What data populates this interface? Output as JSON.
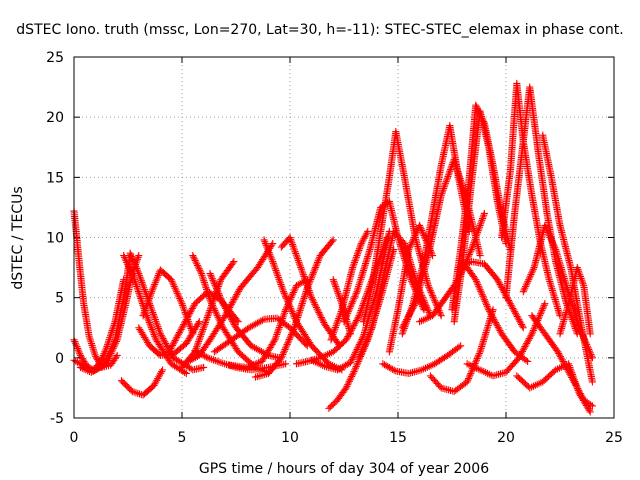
{
  "chart_data": {
    "type": "scatter",
    "title": "dSTEC Iono. truth (mssc, Lon=270, Lat=30, h=-11): STEC-STEC_elemax in phase cont.",
    "xlabel": "GPS time / hours of day 304 of year 2006",
    "ylabel": "dSTEC  / TECUs",
    "xlim": [
      0,
      25
    ],
    "ylim": [
      -5,
      25
    ],
    "xticks": [
      0,
      5,
      10,
      15,
      20,
      25
    ],
    "yticks": [
      -5,
      0,
      5,
      10,
      15,
      20,
      25
    ],
    "grid": true,
    "marker": "plus",
    "color": "#ff0000",
    "series": [
      {
        "x": [
          0.0,
          0.1,
          0.25,
          0.45,
          0.7,
          1.0,
          1.3,
          1.7,
          2.0
        ],
        "y": [
          12.2,
          10.5,
          7.8,
          4.5,
          1.8,
          0.1,
          -0.8,
          -0.6,
          0.2
        ]
      },
      {
        "x": [
          0.0,
          0.3,
          0.6,
          0.9,
          1.2,
          1.5,
          1.9,
          2.3
        ],
        "y": [
          1.5,
          0.2,
          -0.7,
          -1.0,
          -0.4,
          0.8,
          3.0,
          6.5
        ]
      },
      {
        "x": [
          0.0,
          0.4,
          0.9,
          1.5,
          2.0,
          2.4,
          2.7,
          3.0
        ],
        "y": [
          -0.2,
          -0.6,
          -1.1,
          -0.5,
          1.5,
          4.5,
          7.0,
          8.5
        ]
      },
      {
        "x": [
          0.3,
          0.8,
          1.4,
          1.9,
          2.3,
          2.6
        ],
        "y": [
          -0.8,
          -1.2,
          -0.6,
          1.5,
          5.0,
          8.5
        ]
      },
      {
        "x": [
          2.3,
          2.8,
          3.3,
          3.8,
          4.5,
          5.2
        ],
        "y": [
          8.5,
          6.5,
          3.8,
          1.5,
          -0.5,
          -1.3
        ]
      },
      {
        "x": [
          2.6,
          3.0,
          3.5,
          4.0,
          4.6,
          5.5,
          6.0
        ],
        "y": [
          8.7,
          7.0,
          4.5,
          2.0,
          0.0,
          -1.0,
          -0.8
        ]
      },
      {
        "x": [
          2.2,
          2.7,
          3.2,
          3.7,
          4.1
        ],
        "y": [
          -1.9,
          -2.8,
          -3.1,
          -2.3,
          -1.0
        ]
      },
      {
        "x": [
          3.0,
          3.5,
          4.0,
          4.6,
          5.2,
          5.8
        ],
        "y": [
          2.5,
          1.0,
          0.2,
          0.3,
          1.2,
          3.0
        ]
      },
      {
        "x": [
          3.2,
          3.6,
          4.0,
          4.5,
          5.0,
          5.5
        ],
        "y": [
          3.5,
          5.5,
          7.3,
          6.5,
          4.5,
          2.0
        ]
      },
      {
        "x": [
          4.4,
          5.0,
          5.6,
          6.2,
          6.8,
          7.6
        ],
        "y": [
          0.5,
          2.5,
          4.5,
          5.5,
          4.8,
          3.0
        ]
      },
      {
        "x": [
          5.3,
          5.8,
          6.3,
          7.0,
          7.7,
          8.5,
          9.2
        ],
        "y": [
          -0.3,
          0.2,
          1.5,
          3.5,
          5.8,
          7.5,
          9.5
        ]
      },
      {
        "x": [
          5.0,
          5.6,
          6.2,
          6.8,
          7.4
        ],
        "y": [
          -0.8,
          0.5,
          3.5,
          6.5,
          8.0
        ]
      },
      {
        "x": [
          5.5,
          5.9,
          6.3,
          6.9,
          7.6,
          8.4,
          9.0
        ],
        "y": [
          8.5,
          7.0,
          4.8,
          2.5,
          0.5,
          -0.8,
          -1.2
        ]
      },
      {
        "x": [
          6.3,
          6.9,
          7.5,
          8.2,
          9.0,
          9.5
        ],
        "y": [
          7.0,
          4.5,
          2.5,
          1.0,
          0.2,
          0.0
        ]
      },
      {
        "x": [
          5.6,
          6.2,
          6.8,
          7.5,
          8.2,
          9.0,
          9.8
        ],
        "y": [
          0.6,
          0.0,
          -0.4,
          -0.8,
          -1.0,
          -0.8,
          -0.5
        ]
      },
      {
        "x": [
          6.5,
          7.3,
          8.1,
          8.8,
          9.4,
          10.0,
          10.8
        ],
        "y": [
          0.5,
          1.5,
          2.5,
          3.2,
          3.3,
          2.5,
          1.0
        ]
      },
      {
        "x": [
          7.2,
          8.0,
          8.7,
          9.3,
          9.8,
          10.3,
          10.8
        ],
        "y": [
          -0.6,
          -0.8,
          -0.3,
          1.5,
          4.0,
          6.0,
          6.5
        ]
      },
      {
        "x": [
          8.4,
          9.0,
          9.6,
          10.2,
          10.8,
          11.4,
          12.0
        ],
        "y": [
          -1.6,
          -1.3,
          0.0,
          2.5,
          5.8,
          8.5,
          9.8
        ]
      },
      {
        "x": [
          8.8,
          9.2,
          9.7,
          10.3,
          11.0,
          11.8,
          12.4
        ],
        "y": [
          9.8,
          8.0,
          5.5,
          3.0,
          1.0,
          -0.5,
          -1.0
        ]
      },
      {
        "x": [
          9.6,
          10.0,
          10.5,
          11.0,
          11.6,
          12.3
        ],
        "y": [
          9.2,
          10.0,
          7.5,
          5.0,
          2.8,
          1.0
        ]
      },
      {
        "x": [
          10.3,
          10.8,
          11.4,
          12.0,
          12.6,
          13.2,
          13.8,
          14.5
        ],
        "y": [
          -0.5,
          -0.3,
          0.0,
          0.5,
          1.5,
          3.5,
          6.5,
          10.0
        ]
      },
      {
        "x": [
          11.0,
          11.6,
          12.2,
          12.8,
          13.4,
          14.0,
          14.6
        ],
        "y": [
          -0.2,
          -0.7,
          -1.0,
          -0.4,
          1.8,
          5.5,
          10.5
        ]
      },
      {
        "x": [
          11.8,
          12.2,
          12.6,
          13.0,
          13.6,
          14.2,
          14.8
        ],
        "y": [
          -4.2,
          -3.5,
          -2.5,
          -1.0,
          1.5,
          5.0,
          9.0
        ]
      },
      {
        "x": [
          11.9,
          12.4,
          12.9,
          13.3,
          13.6
        ],
        "y": [
          1.5,
          4.0,
          7.5,
          9.5,
          10.5
        ]
      },
      {
        "x": [
          12.0,
          12.4,
          12.8
        ],
        "y": [
          6.5,
          4.5,
          2.0
        ]
      },
      {
        "x": [
          13.4,
          13.8,
          14.2,
          14.6,
          14.9,
          15.3,
          15.8,
          16.4,
          17.0
        ],
        "y": [
          3.0,
          6.0,
          10.5,
          15.0,
          18.8,
          15.0,
          10.0,
          6.0,
          3.5
        ]
      },
      {
        "x": [
          12.5,
          13.1,
          13.7,
          14.2,
          14.6,
          15.0,
          15.6,
          16.2
        ],
        "y": [
          3.0,
          5.5,
          9.0,
          12.5,
          13.0,
          10.0,
          6.5,
          4.0
        ]
      },
      {
        "x": [
          13.2,
          13.8,
          14.3,
          14.8,
          15.3,
          15.9,
          16.5
        ],
        "y": [
          0.0,
          2.5,
          6.5,
          10.5,
          9.5,
          6.0,
          3.5
        ]
      },
      {
        "x": [
          14.3,
          14.9,
          15.5,
          16.1,
          16.7,
          17.3,
          17.9
        ],
        "y": [
          -0.5,
          -1.1,
          -1.3,
          -1.0,
          -0.5,
          0.2,
          1.0
        ]
      },
      {
        "x": [
          14.6,
          15.0,
          15.5,
          16.0,
          16.6
        ],
        "y": [
          0.5,
          4.0,
          9.0,
          11.0,
          8.5
        ]
      },
      {
        "x": [
          15.2,
          15.7,
          16.2,
          16.6,
          17.0,
          17.4,
          17.8,
          18.3
        ],
        "y": [
          2.0,
          4.5,
          8.0,
          12.0,
          16.0,
          19.3,
          15.0,
          10.5
        ]
      },
      {
        "x": [
          15.2,
          15.8,
          16.4,
          17.0,
          17.6,
          18.2,
          18.8
        ],
        "y": [
          2.5,
          4.5,
          8.5,
          13.5,
          16.5,
          13.0,
          8.5
        ]
      },
      {
        "x": [
          16.0,
          16.6,
          17.2,
          17.8,
          18.4,
          19.0
        ],
        "y": [
          3.0,
          3.5,
          5.0,
          6.5,
          9.0,
          12.0
        ]
      },
      {
        "x": [
          16.5,
          17.0,
          17.6,
          18.2,
          18.8,
          19.4
        ],
        "y": [
          -1.5,
          -2.5,
          -2.8,
          -2.0,
          0.5,
          4.0
        ]
      },
      {
        "x": [
          17.5,
          17.9,
          18.3,
          18.6,
          19.0,
          19.4,
          19.8,
          20.2
        ],
        "y": [
          4.0,
          9.0,
          15.0,
          21.0,
          19.5,
          16.0,
          12.0,
          9.0
        ]
      },
      {
        "x": [
          17.6,
          18.0,
          18.4,
          18.8,
          19.2,
          19.6,
          20.0
        ],
        "y": [
          3.0,
          8.0,
          14.5,
          20.5,
          17.5,
          13.0,
          9.5
        ]
      },
      {
        "x": [
          18.0,
          18.6,
          19.2,
          19.8,
          20.4,
          21.0
        ],
        "y": [
          8.0,
          6.5,
          4.0,
          2.0,
          0.5,
          -0.3
        ]
      },
      {
        "x": [
          17.8,
          18.4,
          19.0,
          19.6,
          20.2,
          20.8
        ],
        "y": [
          7.5,
          8.0,
          7.8,
          6.5,
          4.5,
          2.5
        ]
      },
      {
        "x": [
          18.2,
          18.8,
          19.4,
          20.0,
          20.6,
          21.2,
          21.8
        ],
        "y": [
          -0.5,
          -1.0,
          -1.5,
          -1.2,
          0.0,
          2.0,
          4.5
        ]
      },
      {
        "x": [
          19.8,
          20.2,
          20.5,
          20.8,
          21.2,
          21.6,
          22.0,
          22.5
        ],
        "y": [
          10.0,
          15.5,
          22.8,
          18.0,
          13.5,
          9.5,
          6.5,
          3.5
        ]
      },
      {
        "x": [
          20.0,
          20.4,
          20.8,
          21.1,
          21.5,
          21.9,
          22.3,
          22.8,
          23.3
        ],
        "y": [
          5.0,
          12.0,
          18.0,
          22.5,
          17.0,
          12.0,
          8.0,
          4.5,
          2.0
        ]
      },
      {
        "x": [
          20.8,
          21.3,
          21.8,
          22.3,
          22.8,
          23.4,
          24.0
        ],
        "y": [
          5.5,
          7.5,
          11.0,
          9.0,
          6.0,
          2.5,
          0.0
        ]
      },
      {
        "x": [
          21.7,
          22.1,
          22.5,
          23.0,
          23.5,
          24.0
        ],
        "y": [
          18.5,
          15.0,
          11.0,
          7.5,
          2.5,
          -2.0
        ]
      },
      {
        "x": [
          21.2,
          21.8,
          22.4,
          23.0,
          23.6,
          24.0
        ],
        "y": [
          3.5,
          2.0,
          0.5,
          -1.5,
          -3.5,
          -4.0
        ]
      },
      {
        "x": [
          20.5,
          21.1,
          21.7,
          22.3,
          22.9,
          23.4,
          23.9
        ],
        "y": [
          -1.5,
          -2.5,
          -2.0,
          -1.0,
          -0.5,
          -3.0,
          -4.5
        ]
      },
      {
        "x": [
          22.5,
          22.9,
          23.3,
          23.6,
          23.9
        ],
        "y": [
          2.0,
          4.5,
          7.5,
          6.0,
          2.0
        ]
      }
    ]
  }
}
